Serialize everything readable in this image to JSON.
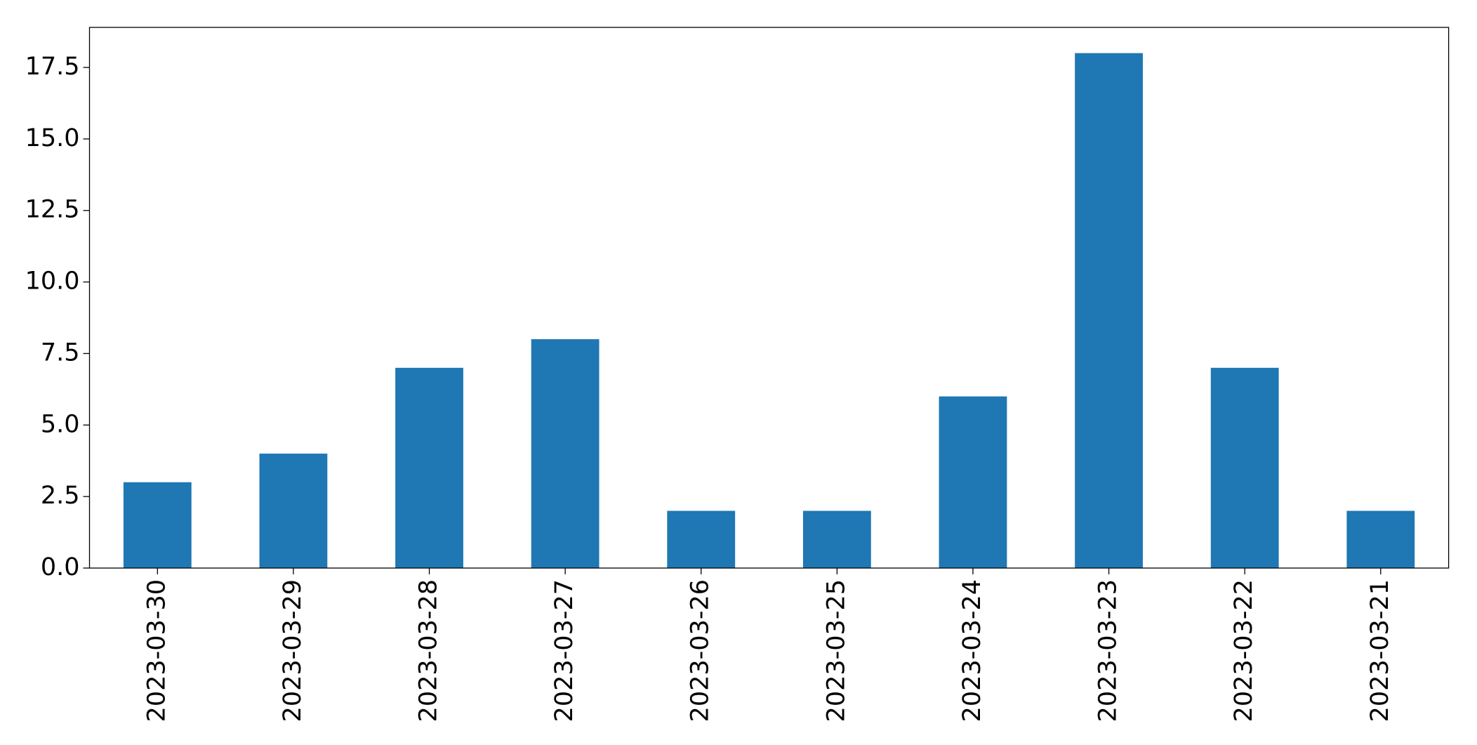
{
  "chart_data": {
    "type": "bar",
    "categories": [
      "2023-03-30",
      "2023-03-29",
      "2023-03-28",
      "2023-03-27",
      "2023-03-26",
      "2023-03-25",
      "2023-03-24",
      "2023-03-23",
      "2023-03-22",
      "2023-03-21"
    ],
    "values": [
      3,
      4,
      7,
      8,
      2,
      2,
      6,
      18,
      7,
      2
    ],
    "color": "#1f77b4",
    "ylim": [
      0,
      18.9
    ],
    "yticks": [
      {
        "value": 0,
        "label": "0.0"
      },
      2.5,
      {
        "value": 5,
        "label": "5.0"
      },
      7.5,
      {
        "value": 10,
        "label": "10.0"
      },
      12.5,
      {
        "value": 15,
        "label": "15.0"
      },
      17.5
    ],
    "grid": false
  }
}
